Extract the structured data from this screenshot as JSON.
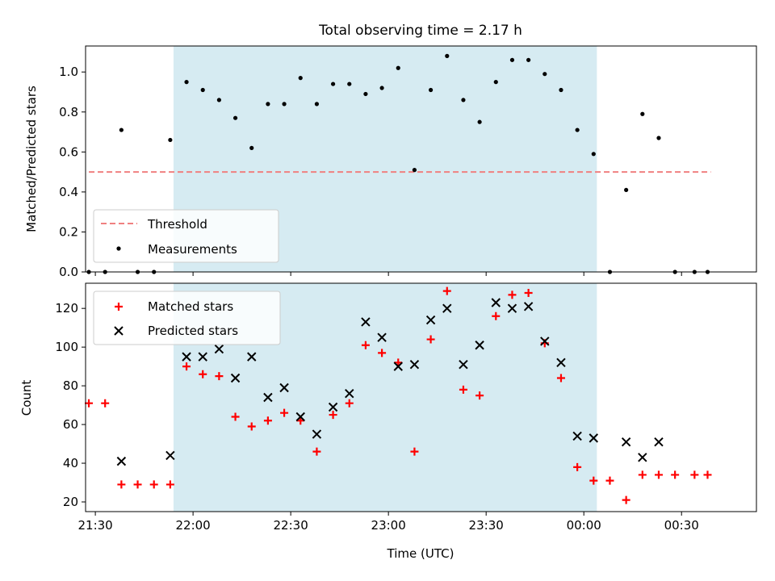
{
  "title": "Total observing time = 2.17 h",
  "colors": {
    "shade": "#add8e6",
    "threshold": "#f08080",
    "measurement": "#000000",
    "matched": "#ff0000",
    "predicted": "#000000"
  },
  "chart_data": [
    {
      "type": "scatter",
      "title": "Total observing time = 2.17 h",
      "xlabel": "",
      "ylabel": "Matched/Predicted stars",
      "xlim": [
        "21:27",
        "00:53"
      ],
      "ylim": [
        0,
        1.13
      ],
      "yticks": [
        0.0,
        0.2,
        0.4,
        0.6,
        0.8,
        1.0
      ],
      "ytick_labels": [
        "0.0",
        "0.2",
        "0.4",
        "0.6",
        "0.8",
        "1.0"
      ],
      "shaded_span": [
        "21:54",
        "00:04"
      ],
      "legend": {
        "placement": "lower-left",
        "entries": [
          "Threshold",
          "Measurements"
        ]
      },
      "threshold": {
        "name": "Threshold",
        "y": 0.5,
        "x_start": "21:28",
        "x_end": "00:39"
      },
      "series": [
        {
          "name": "Measurements",
          "marker": "dot",
          "x": [
            "21:28",
            "21:33",
            "21:38",
            "21:43",
            "21:48",
            "21:53",
            "21:58",
            "22:03",
            "22:08",
            "22:13",
            "22:18",
            "22:23",
            "22:28",
            "22:33",
            "22:38",
            "22:43",
            "22:48",
            "22:53",
            "22:58",
            "23:03",
            "23:08",
            "23:13",
            "23:18",
            "23:23",
            "23:28",
            "23:33",
            "23:38",
            "23:43",
            "23:48",
            "23:53",
            "23:58",
            "00:03",
            "00:08",
            "00:13",
            "00:18",
            "00:23",
            "00:28",
            "00:34",
            "00:38"
          ],
          "y": [
            0.0,
            0.0,
            0.71,
            0.0,
            0.0,
            0.66,
            0.95,
            0.91,
            0.86,
            0.77,
            0.62,
            0.84,
            0.84,
            0.97,
            0.84,
            0.94,
            0.94,
            0.89,
            0.92,
            1.02,
            0.51,
            0.91,
            1.08,
            0.86,
            0.75,
            0.95,
            1.06,
            1.06,
            0.99,
            0.91,
            0.71,
            0.59,
            0.0,
            0.41,
            0.79,
            0.67,
            0.0,
            0.0,
            0.0
          ]
        }
      ]
    },
    {
      "type": "scatter",
      "title": "",
      "xlabel": "Time (UTC)",
      "ylabel": "Count",
      "xlim": [
        "21:27",
        "00:53"
      ],
      "ylim": [
        15,
        133
      ],
      "xticks": [
        "21:30",
        "22:00",
        "22:30",
        "23:00",
        "23:30",
        "00:00",
        "00:30"
      ],
      "yticks": [
        20,
        40,
        60,
        80,
        100,
        120
      ],
      "ytick_labels": [
        "20",
        "40",
        "60",
        "80",
        "100",
        "120"
      ],
      "shaded_span": [
        "21:54",
        "00:04"
      ],
      "legend": {
        "placement": "upper-left",
        "entries": [
          "Matched stars",
          "Predicted stars"
        ]
      },
      "series": [
        {
          "name": "Matched stars",
          "marker": "plus",
          "x": [
            "21:28",
            "21:33",
            "21:38",
            "21:43",
            "21:48",
            "21:53",
            "21:58",
            "22:03",
            "22:08",
            "22:13",
            "22:18",
            "22:23",
            "22:28",
            "22:33",
            "22:38",
            "22:43",
            "22:48",
            "22:53",
            "22:58",
            "23:03",
            "23:08",
            "23:13",
            "23:18",
            "23:23",
            "23:28",
            "23:33",
            "23:38",
            "23:43",
            "23:48",
            "23:53",
            "23:58",
            "00:03",
            "00:08",
            "00:13",
            "00:18",
            "00:23",
            "00:28",
            "00:34",
            "00:38"
          ],
          "y": [
            71,
            71,
            29,
            29,
            29,
            29,
            90,
            86,
            85,
            64,
            59,
            62,
            66,
            62,
            46,
            65,
            71,
            101,
            97,
            92,
            46,
            104,
            129,
            78,
            75,
            116,
            127,
            128,
            102,
            84,
            38,
            31,
            31,
            21,
            34,
            34,
            34,
            34,
            34
          ]
        },
        {
          "name": "Predicted stars",
          "marker": "x",
          "x": [
            "21:38",
            "21:53",
            "21:58",
            "22:03",
            "22:08",
            "22:13",
            "22:18",
            "22:23",
            "22:28",
            "22:33",
            "22:38",
            "22:43",
            "22:48",
            "22:53",
            "22:58",
            "23:03",
            "23:08",
            "23:13",
            "23:18",
            "23:23",
            "23:28",
            "23:33",
            "23:38",
            "23:43",
            "23:48",
            "23:53",
            "23:58",
            "00:03",
            "00:13",
            "00:18",
            "00:23"
          ],
          "y": [
            41,
            44,
            95,
            95,
            99,
            84,
            95,
            74,
            79,
            64,
            55,
            69,
            76,
            113,
            105,
            90,
            91,
            114,
            120,
            91,
            101,
            123,
            120,
            121,
            103,
            92,
            54,
            53,
            51,
            43,
            51
          ]
        }
      ]
    }
  ]
}
